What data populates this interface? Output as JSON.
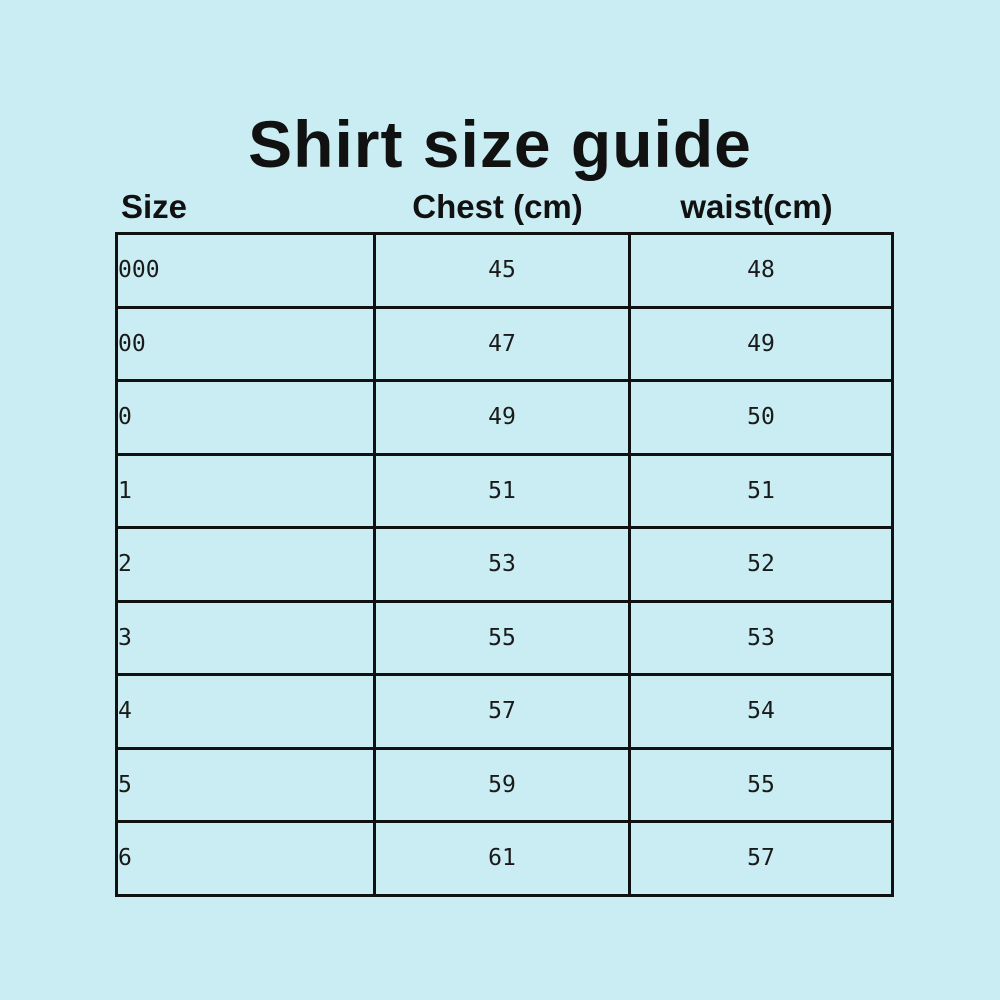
{
  "page": {
    "title": "Shirt size guide",
    "background_color": "#c9edf3",
    "border_color": "#111111",
    "text_color": "#111111"
  },
  "chart_data": {
    "type": "table",
    "title": "Shirt size guide",
    "columns": [
      "Size",
      "Chest (cm)",
      "waist(cm)"
    ],
    "rows": [
      {
        "size": "000",
        "chest": "45",
        "waist": "48"
      },
      {
        "size": "00",
        "chest": "47",
        "waist": "49"
      },
      {
        "size": "0",
        "chest": "49",
        "waist": "50"
      },
      {
        "size": "1",
        "chest": "51",
        "waist": "51"
      },
      {
        "size": "2",
        "chest": "53",
        "waist": "52"
      },
      {
        "size": "3",
        "chest": "55",
        "waist": "53"
      },
      {
        "size": "4",
        "chest": "57",
        "waist": "54"
      },
      {
        "size": "5",
        "chest": "59",
        "waist": "55"
      },
      {
        "size": "6",
        "chest": "61",
        "waist": "57"
      }
    ],
    "layout": {
      "grid": true,
      "header_alignment": [
        "left",
        "center",
        "center"
      ],
      "cell_alignment": [
        "left",
        "center",
        "center"
      ]
    }
  },
  "header": {
    "col_size": "Size",
    "col_chest": "Chest (cm)",
    "col_waist": "waist(cm)"
  }
}
